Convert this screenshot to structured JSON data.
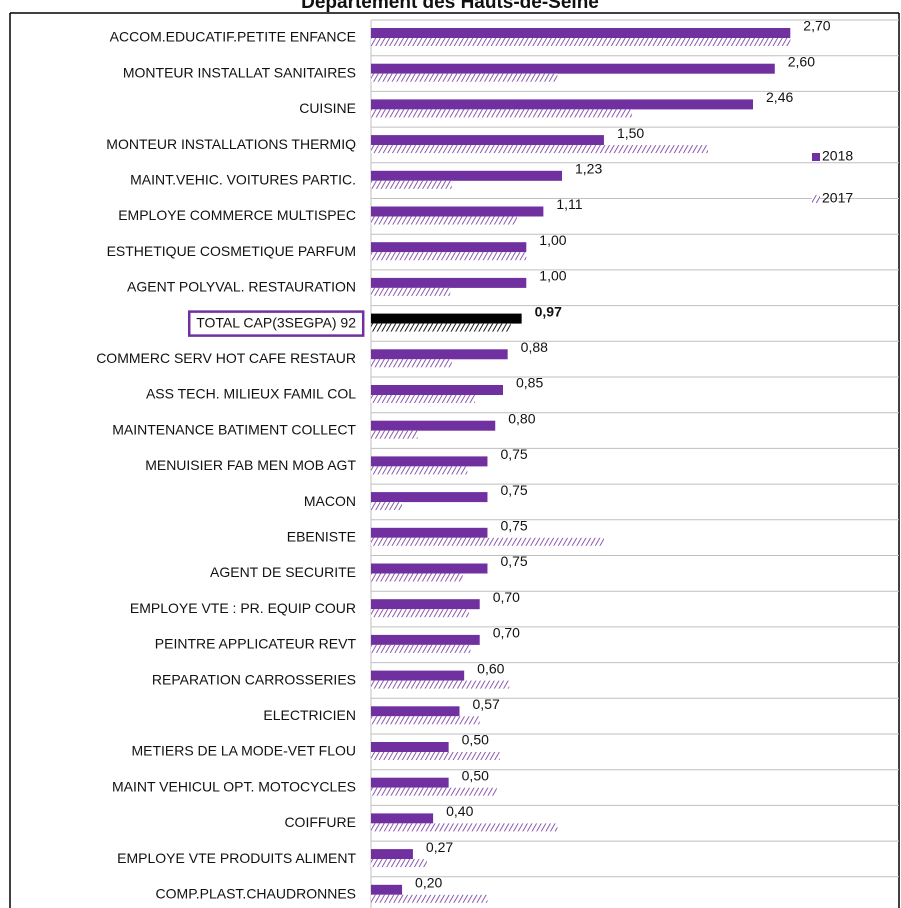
{
  "chart_data": {
    "type": "bar",
    "orientation": "horizontal",
    "title": "Département des Hauts-de-Seine",
    "categories": [
      "ACCOM.EDUCATIF.PETITE ENFANCE",
      "MONTEUR INSTALLAT SANITAIRES",
      "CUISINE",
      "MONTEUR INSTALLATIONS THERMIQ",
      "MAINT.VEHIC. VOITURES PARTIC.",
      "EMPLOYE COMMERCE MULTISPEC",
      "ESTHETIQUE COSMETIQUE PARFUM",
      "AGENT POLYVAL. RESTAURATION",
      "TOTAL CAP(3SEGPA) 92",
      "COMMERC SERV HOT CAFE RESTAUR",
      "ASS TECH. MILIEUX FAMIL COL",
      "MAINTENANCE BATIMENT COLLECT",
      "MENUISIER FAB MEN MOB AGT",
      "MACON",
      "EBENISTE",
      "AGENT DE SECURITE",
      "EMPLOYE VTE : PR. EQUIP COUR",
      "PEINTRE APPLICATEUR REVT",
      "REPARATION CARROSSERIES",
      "ELECTRICIEN",
      "METIERS DE LA MODE-VET FLOU",
      "MAINT VEHICUL OPT. MOTOCYCLES",
      "COIFFURE",
      "EMPLOYE VTE PRODUITS ALIMENT",
      "COMP.PLAST.CHAUDRONNES"
    ],
    "series": [
      {
        "name": "2018",
        "color": "#7030a0",
        "pattern": "solid",
        "values": [
          2.7,
          2.6,
          2.46,
          1.5,
          1.23,
          1.11,
          1.0,
          1.0,
          0.97,
          0.88,
          0.85,
          0.8,
          0.75,
          0.75,
          0.75,
          0.75,
          0.7,
          0.7,
          0.6,
          0.57,
          0.5,
          0.5,
          0.4,
          0.27,
          0.2
        ],
        "value_labels": [
          "2,70",
          "2,60",
          "2,46",
          "1,50",
          "1,23",
          "1,11",
          "1,00",
          "1,00",
          "0,97",
          "0,88",
          "0,85",
          "0,80",
          "0,75",
          "0,75",
          "0,75",
          "0,75",
          "0,70",
          "0,70",
          "0,60",
          "0,57",
          "0,50",
          "0,50",
          "0,40",
          "0,27",
          "0,20"
        ]
      },
      {
        "name": "2017",
        "color": "#7030a0",
        "pattern": "hatch",
        "values": [
          2.7,
          1.2,
          1.68,
          2.17,
          0.52,
          0.94,
          1.0,
          0.51,
          0.9,
          0.52,
          0.67,
          0.3,
          0.62,
          0.2,
          1.5,
          0.59,
          0.63,
          0.64,
          0.89,
          0.7,
          0.83,
          0.81,
          1.2,
          0.36,
          0.75
        ]
      }
    ],
    "highlight_index": 8,
    "highlight_color": "#000000",
    "xlim": [
      0,
      3.4
    ],
    "grid": true,
    "legend": "right"
  }
}
